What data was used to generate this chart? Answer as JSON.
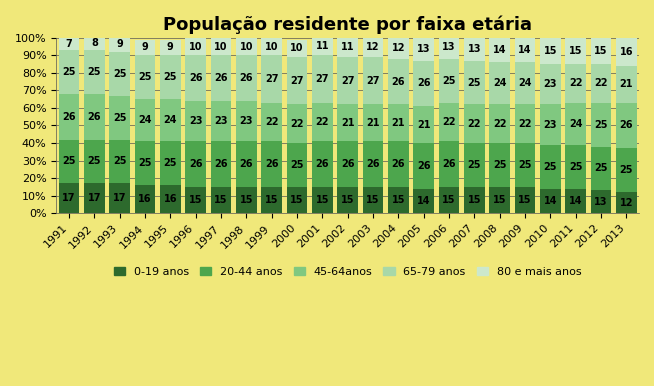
{
  "title": "População residente por faixa etária",
  "years": [
    "1991",
    "1992",
    "1993",
    "1994",
    "1995",
    "1996",
    "1997",
    "1998",
    "1999",
    "2000",
    "2001",
    "2002",
    "2003",
    "2004",
    "2005",
    "2006",
    "2007",
    "2008",
    "2009",
    "2010",
    "2011",
    "2012",
    "2013"
  ],
  "series": {
    "0-19 anos": [
      17,
      17,
      17,
      16,
      16,
      15,
      15,
      15,
      15,
      15,
      15,
      15,
      15,
      15,
      14,
      15,
      15,
      15,
      15,
      14,
      14,
      13,
      12
    ],
    "20-44 anos": [
      25,
      25,
      25,
      25,
      25,
      26,
      26,
      26,
      26,
      25,
      26,
      26,
      26,
      26,
      26,
      26,
      25,
      25,
      25,
      25,
      25,
      25,
      25
    ],
    "45-64anos": [
      26,
      26,
      25,
      24,
      24,
      23,
      23,
      23,
      22,
      22,
      22,
      21,
      21,
      21,
      21,
      22,
      22,
      22,
      22,
      23,
      24,
      25,
      26
    ],
    "65-79 anos": [
      25,
      25,
      25,
      25,
      25,
      26,
      26,
      26,
      27,
      27,
      27,
      27,
      27,
      26,
      26,
      25,
      25,
      24,
      24,
      23,
      22,
      22,
      21
    ],
    "80 e mais anos": [
      7,
      8,
      9,
      9,
      9,
      10,
      10,
      10,
      10,
      10,
      11,
      11,
      12,
      12,
      13,
      13,
      13,
      14,
      14,
      15,
      15,
      15,
      16
    ]
  },
  "colors": {
    "0-19 anos": "#2d6a2d",
    "20-44 anos": "#4da64d",
    "45-64anos": "#80c880",
    "65-79 anos": "#a8d8a8",
    "80 e mais anos": "#cce8cc"
  },
  "legend_order": [
    "0-19 anos",
    "20-44 anos",
    "45-64anos",
    "65-79 anos",
    "80 e mais anos"
  ],
  "yticks": [
    0,
    10,
    20,
    30,
    40,
    50,
    60,
    70,
    80,
    90,
    100
  ],
  "background_color": "#f0e87a",
  "bar_edge_color": "none",
  "title_fontsize": 13,
  "label_fontsize": 7,
  "legend_fontsize": 8,
  "tick_fontsize": 8
}
